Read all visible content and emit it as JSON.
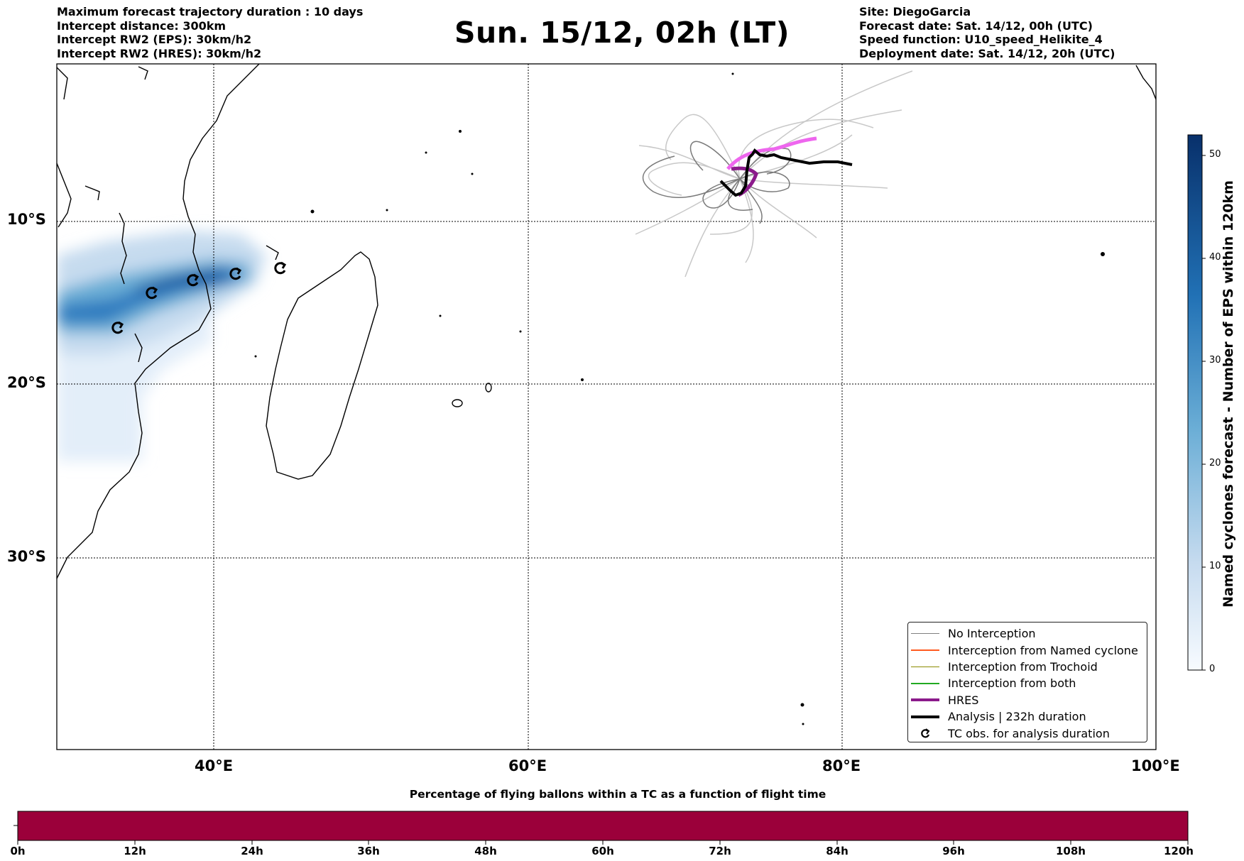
{
  "header": {
    "left": [
      "Maximum forecast trajectory duration : 10 days",
      "Intercept distance: 300km",
      "Intercept RW2 (EPS):  30km/h2",
      "Intercept RW2 (HRES): 30km/h2"
    ],
    "title": "Sun. 15/12, 02h (LT)",
    "right": [
      "Site: DiegoGarcia",
      "Forecast date: Sat. 14/12, 00h (UTC)",
      "Speed function: U10_speed_Helikite_4",
      "Deployment date: Sat. 14/12, 20h (UTC)"
    ]
  },
  "map": {
    "lon_range": [
      30,
      100
    ],
    "lat_range": [
      -43,
      1
    ],
    "lon_ticks": [
      "40°E",
      "60°E",
      "80°E",
      "100°E"
    ],
    "lat_ticks": [
      "10°S",
      "20°S",
      "30°S"
    ],
    "gridlines": true
  },
  "legend": {
    "placement": "lower-right",
    "items": [
      {
        "label": "No Interception",
        "color": "#808080",
        "style": "thin"
      },
      {
        "label": "Interception from Named cyclone",
        "color": "#ff5a1f",
        "style": "thin"
      },
      {
        "label": "Interception from Trochoid",
        "color": "#8a8a00",
        "style": "thin"
      },
      {
        "label": "Interception from both",
        "color": "#22aa22",
        "style": "thin"
      },
      {
        "label": "HRES",
        "color": "#8b1a8b",
        "style": "thick"
      },
      {
        "label": "Analysis | 232h duration",
        "color": "#000000",
        "style": "thick"
      },
      {
        "label": "TC obs. for analysis duration",
        "color": "#000000",
        "style": "marker"
      }
    ]
  },
  "colorbar": {
    "title": "Named cyclones forecast - Number of EPS within 120km",
    "ticks": [
      "0",
      "10",
      "20",
      "30",
      "40",
      "50"
    ],
    "min": 0,
    "max": 52,
    "colormap": "Blues"
  },
  "time_bar": {
    "title": "Percentage of flying ballons within a TC as a function of flight time",
    "ticks": [
      "0h",
      "12h",
      "24h",
      "36h",
      "48h",
      "60h",
      "72h",
      "84h",
      "96h",
      "108h",
      "120h"
    ],
    "fill_color": "#9b003a"
  },
  "icon": "tc-observation-icon"
}
